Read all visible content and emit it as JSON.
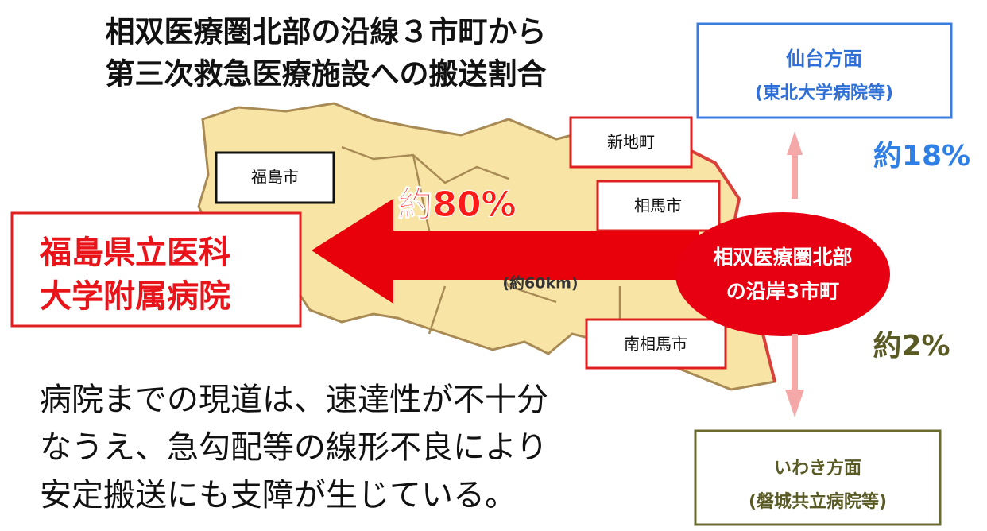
{
  "title": [
    "相双医療圏北部の沿線３市町から",
    "第三次救急医療施設への搬送割合"
  ],
  "sendai": {
    "name": "仙台方面",
    "hospital": "(東北大学病院等)",
    "share": "約18%"
  },
  "iwaki": {
    "name": "いわき方面",
    "hospital": "(磐城共立病院等)",
    "share": "約2%"
  },
  "fukushima": {
    "share": "約80%",
    "distance": "(約60km)",
    "hospital": [
      "福島県立医科",
      "大学附属病院"
    ]
  },
  "origin": [
    "相双医療圏北部",
    "の沿岸3市町"
  ],
  "places": {
    "shinchi": "新地町",
    "fukushima_city": "福島市",
    "soma": "相馬市",
    "minamisoma": "南相馬市"
  },
  "note": [
    "病院までの現道は、速達性が不十分",
    "なうえ、急勾配等の線形不良により",
    "安定搬送にも支障が生じている。"
  ]
}
